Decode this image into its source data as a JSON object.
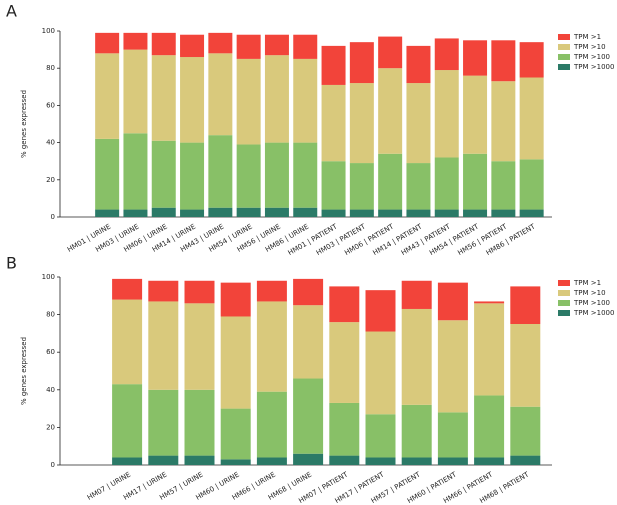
{
  "chart_data": [
    {
      "type": "stacked_bar",
      "panel_label": "A",
      "ylabel": "% genes expressed",
      "categories": [
        "HM01 | URINE",
        "HM03 | URINE",
        "HM06 | URINE",
        "HM14 | URINE",
        "HM43 | URINE",
        "HM54 | URINE",
        "HM56 | URINE",
        "HM86 | URINE",
        "HM01 | PATIENT",
        "HM03 | PATIENT",
        "HM06 | PATIENT",
        "HM14 | PATIENT",
        "HM43 | PATIENT",
        "HM54 | PATIENT",
        "HM56 | PATIENT",
        "HM86 | PATIENT"
      ],
      "series": [
        {
          "name": "TPM >1",
          "color": "#f2443a",
          "values": [
            11,
            9,
            12,
            12,
            11,
            13,
            11,
            13,
            21,
            22,
            17,
            20,
            17,
            19,
            22,
            19
          ]
        },
        {
          "name": "TPM >10",
          "color": "#d9c97c",
          "values": [
            46,
            45,
            46,
            46,
            44,
            46,
            47,
            45,
            41,
            43,
            46,
            43,
            47,
            42,
            43,
            44
          ]
        },
        {
          "name": "TPM >100",
          "color": "#88c067",
          "values": [
            38,
            41,
            36,
            36,
            39,
            34,
            35,
            35,
            26,
            25,
            30,
            25,
            28,
            30,
            26,
            27
          ]
        },
        {
          "name": "TPM >1000",
          "color": "#2b7a67",
          "values": [
            4,
            4,
            5,
            4,
            5,
            5,
            5,
            5,
            4,
            4,
            4,
            4,
            4,
            4,
            4,
            4
          ]
        }
      ],
      "ylim": [
        0,
        100
      ],
      "yticks": [
        0,
        20,
        40,
        60,
        80,
        100
      ]
    },
    {
      "type": "stacked_bar",
      "panel_label": "B",
      "ylabel": "% genes expressed",
      "categories": [
        "HM07 | URINE",
        "HM17 | URINE",
        "HM57 | URINE",
        "HM60 | URINE",
        "HM66 | URINE",
        "HM68 | URINE",
        "HM07 | PATIENT",
        "HM17 | PATIENT",
        "HM57 | PATIENT",
        "HM60 | PATIENT",
        "HM66 | PATIENT",
        "HM68 | PATIENT"
      ],
      "series": [
        {
          "name": "TPM >1",
          "color": "#f2443a",
          "values": [
            11,
            11,
            12,
            18,
            11,
            14,
            19,
            22,
            15,
            20,
            1,
            20
          ]
        },
        {
          "name": "TPM >10",
          "color": "#d9c97c",
          "values": [
            45,
            47,
            46,
            49,
            48,
            39,
            43,
            44,
            51,
            49,
            49,
            44
          ]
        },
        {
          "name": "TPM >100",
          "color": "#88c067",
          "values": [
            39,
            35,
            35,
            27,
            35,
            40,
            28,
            23,
            28,
            24,
            33,
            26
          ]
        },
        {
          "name": "TPM >1000",
          "color": "#2b7a67",
          "values": [
            4,
            5,
            5,
            3,
            4,
            6,
            5,
            4,
            4,
            4,
            4,
            5
          ]
        }
      ],
      "ylim": [
        0,
        100
      ],
      "yticks": [
        0,
        20,
        40,
        60,
        80,
        100
      ]
    }
  ]
}
